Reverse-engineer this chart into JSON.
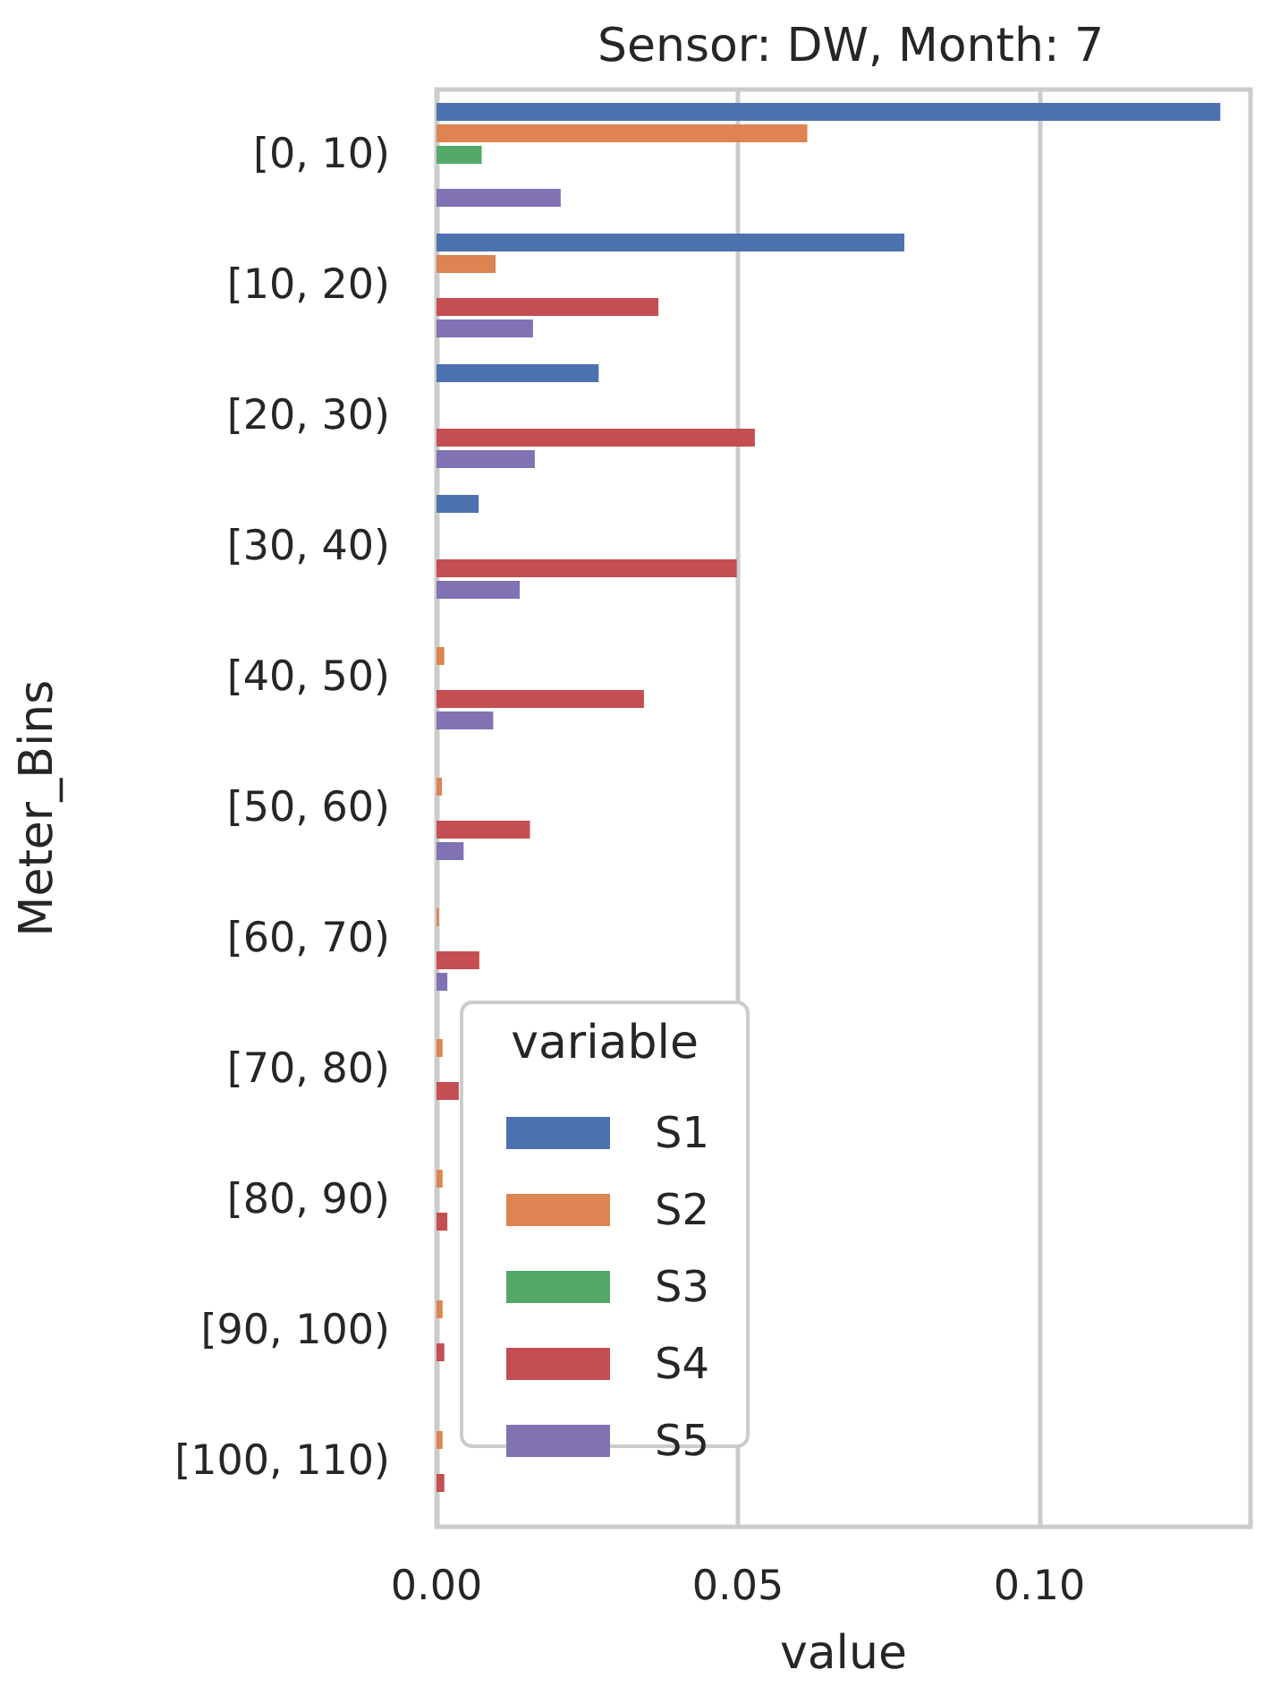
{
  "chart_data": {
    "type": "bar",
    "orientation": "horizontal",
    "title": "Sensor: DW, Month: 7",
    "xlabel": "value",
    "ylabel": "Meter_Bins",
    "legend_title": "variable",
    "legend": "bottom left",
    "grid": "x",
    "categories": [
      "[0, 10)",
      "[10, 20)",
      "[20, 30)",
      "[30, 40)",
      "[40, 50)",
      "[50, 60)",
      "[60, 70)",
      "[70, 80)",
      "[80, 90)",
      "[90, 100)",
      "[100, 110)"
    ],
    "xlim": [
      0,
      0.135
    ],
    "xticks": [
      {
        "value": 0,
        "label": "0.00"
      },
      {
        "value": 0.05,
        "label": "0.05"
      },
      {
        "value": 0.1,
        "label": "0.10"
      }
    ],
    "series": [
      {
        "name": "S1",
        "color": "#4c72b0",
        "values": [
          0.13,
          0.0776,
          0.0269,
          0.007,
          null,
          null,
          null,
          null,
          null,
          null,
          null
        ]
      },
      {
        "name": "S2",
        "color": "#dd8452",
        "values": [
          0.0615,
          0.0098,
          null,
          null,
          0.0013,
          0.0009,
          0.0004,
          0.001,
          0.001,
          0.001,
          0.001
        ]
      },
      {
        "name": "S3",
        "color": "#55a868",
        "values": [
          0.0075,
          null,
          null,
          null,
          null,
          null,
          null,
          null,
          null,
          null,
          null
        ]
      },
      {
        "name": "S4",
        "color": "#c44e52",
        "values": [
          null,
          0.0368,
          0.0528,
          0.0498,
          0.0344,
          0.0155,
          0.0071,
          0.0037,
          0.0018,
          0.0013,
          0.0013
        ]
      },
      {
        "name": "S5",
        "color": "#8172b3",
        "values": [
          0.0206,
          0.016,
          0.0163,
          0.0138,
          0.0094,
          0.0045,
          0.0018,
          null,
          null,
          null,
          null
        ]
      }
    ]
  }
}
